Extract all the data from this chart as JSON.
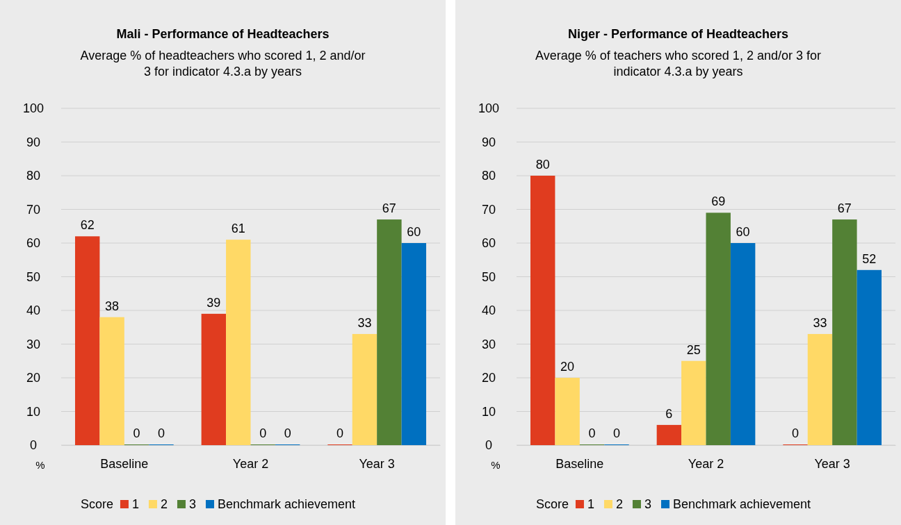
{
  "chart_data": [
    {
      "type": "bar",
      "title": "Mali - Performance of Headteachers",
      "subtitle": "Average % of headteachers who scored 1, 2 and/or 3 for indicator 4.3.a by years",
      "ylabel": "%",
      "legend_title": "Score",
      "categories": [
        "Baseline",
        "Year 2",
        "Year 3"
      ],
      "series": [
        {
          "name": "1",
          "color": "#e03c1f",
          "values": [
            62,
            39,
            0
          ]
        },
        {
          "name": "2",
          "color": "#ffd966",
          "values": [
            38,
            61,
            33
          ]
        },
        {
          "name": "3",
          "color": "#538135",
          "values": [
            0,
            0,
            67
          ]
        },
        {
          "name": "Benchmark achievement",
          "color": "#0070c0",
          "values": [
            0,
            0,
            60
          ]
        }
      ],
      "ylim": [
        0,
        100
      ],
      "yticks": [
        0,
        10,
        20,
        30,
        40,
        50,
        60,
        70,
        80,
        90,
        100
      ],
      "grid": "y",
      "legend": "bottom",
      "data_labels": true
    },
    {
      "type": "bar",
      "title": "Niger - Performance of Headteachers",
      "subtitle": "Average % of teachers who scored 1, 2 and/or 3 for indicator 4.3.a by years",
      "ylabel": "%",
      "legend_title": "Score",
      "categories": [
        "Baseline",
        "Year 2",
        "Year 3"
      ],
      "series": [
        {
          "name": "1",
          "color": "#e03c1f",
          "values": [
            80,
            6,
            0
          ]
        },
        {
          "name": "2",
          "color": "#ffd966",
          "values": [
            20,
            25,
            33
          ]
        },
        {
          "name": "3",
          "color": "#538135",
          "values": [
            0,
            69,
            67
          ]
        },
        {
          "name": "Benchmark achievement",
          "color": "#0070c0",
          "values": [
            0,
            60,
            52
          ]
        }
      ],
      "ylim": [
        0,
        100
      ],
      "yticks": [
        0,
        10,
        20,
        30,
        40,
        50,
        60,
        70,
        80,
        90,
        100
      ],
      "grid": "y",
      "legend": "bottom",
      "data_labels": true
    }
  ]
}
